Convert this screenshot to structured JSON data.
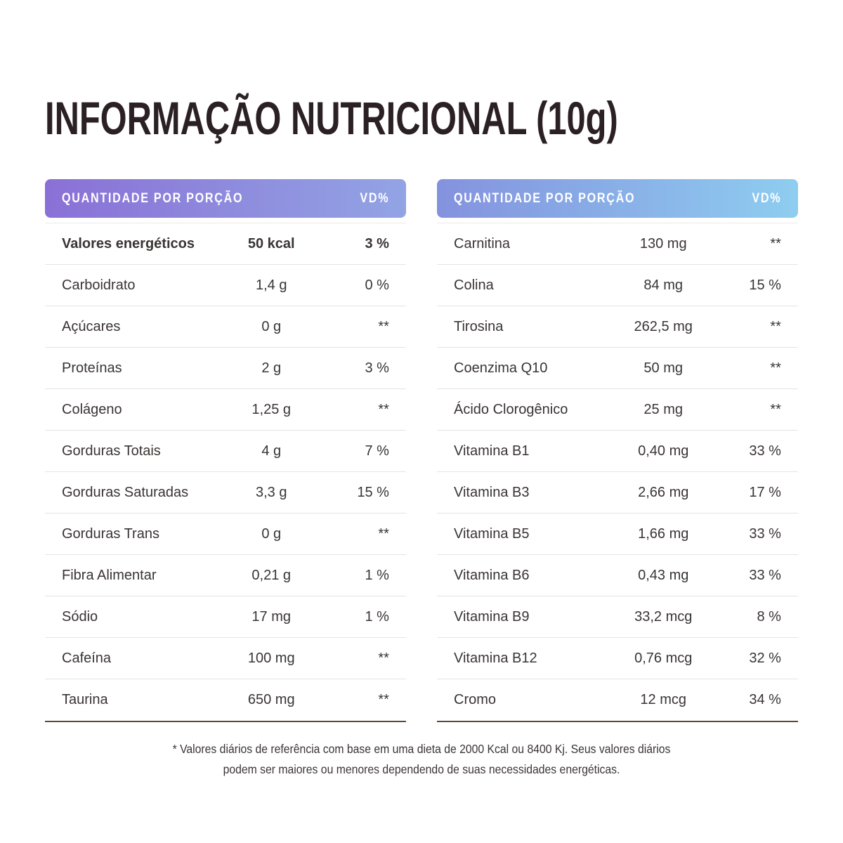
{
  "title": "INFORMAÇÃO NUTRICIONAL (10g)",
  "colors": {
    "title_text": "#2b2124",
    "row_text": "#3a3434",
    "row_separator": "#e6e4e4",
    "table_bottom_border": "#5d4a3c",
    "header_text": "#ffffff",
    "left_header_gradient_from": "#8a70d6",
    "left_header_gradient_to": "#92a4e4",
    "right_header_gradient_from": "#8492de",
    "right_header_gradient_to": "#8ecdf0"
  },
  "tables": [
    {
      "header": {
        "label": "QUANTIDADE POR PORÇÃO",
        "vd": "VD%"
      },
      "rows": [
        {
          "label": "Valores energéticos",
          "value": "50 kcal",
          "vd": "3 %",
          "bold": true
        },
        {
          "label": "Carboidrato",
          "value": "1,4 g",
          "vd": "0 %"
        },
        {
          "label": "Açúcares",
          "value": "0 g",
          "vd": "**"
        },
        {
          "label": "Proteínas",
          "value": "2 g",
          "vd": "3 %"
        },
        {
          "label": "Colágeno",
          "value": "1,25 g",
          "vd": "**"
        },
        {
          "label": "Gorduras Totais",
          "value": "4 g",
          "vd": "7 %"
        },
        {
          "label": "Gorduras Saturadas",
          "value": "3,3 g",
          "vd": "15 %"
        },
        {
          "label": "Gorduras Trans",
          "value": "0 g",
          "vd": "**"
        },
        {
          "label": "Fibra Alimentar",
          "value": "0,21 g",
          "vd": "1 %"
        },
        {
          "label": "Sódio",
          "value": "17 mg",
          "vd": "1 %"
        },
        {
          "label": "Cafeína",
          "value": "100 mg",
          "vd": "**"
        },
        {
          "label": "Taurina",
          "value": "650 mg",
          "vd": "**"
        }
      ]
    },
    {
      "header": {
        "label": "QUANTIDADE POR PORÇÃO",
        "vd": "VD%"
      },
      "rows": [
        {
          "label": "Carnitina",
          "value": "130 mg",
          "vd": "**"
        },
        {
          "label": "Colina",
          "value": "84 mg",
          "vd": "15 %"
        },
        {
          "label": "Tirosina",
          "value": "262,5 mg",
          "vd": "**"
        },
        {
          "label": "Coenzima Q10",
          "value": "50 mg",
          "vd": "**"
        },
        {
          "label": "Ácido Clorogênico",
          "value": "25 mg",
          "vd": "**"
        },
        {
          "label": "Vitamina B1",
          "value": "0,40 mg",
          "vd": "33 %"
        },
        {
          "label": "Vitamina B3",
          "value": "2,66 mg",
          "vd": "17 %"
        },
        {
          "label": "Vitamina B5",
          "value": "1,66 mg",
          "vd": "33 %"
        },
        {
          "label": "Vitamina B6",
          "value": "0,43 mg",
          "vd": "33 %"
        },
        {
          "label": "Vitamina B9",
          "value": "33,2 mcg",
          "vd": "8 %"
        },
        {
          "label": "Vitamina B12",
          "value": "0,76 mcg",
          "vd": "32 %"
        },
        {
          "label": "Cromo",
          "value": "12 mcg",
          "vd": "34 %"
        }
      ]
    }
  ],
  "footnote": {
    "line1": "* Valores diários de referência com base em uma dieta de 2000 Kcal ou 8400 Kj. Seus valores diários",
    "line2": "podem ser maiores ou menores dependendo de suas necessidades energéticas."
  }
}
